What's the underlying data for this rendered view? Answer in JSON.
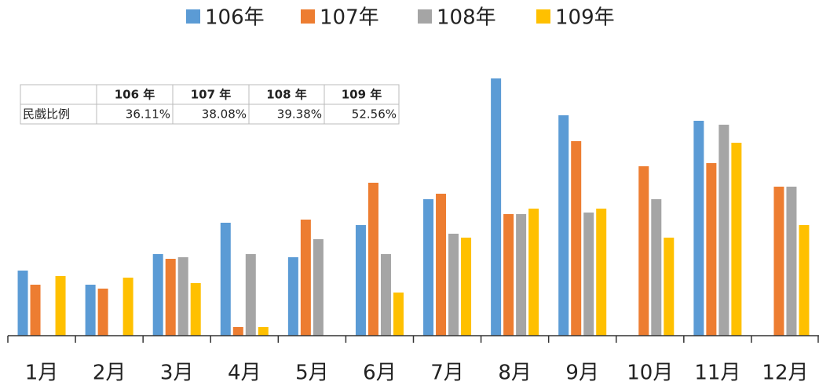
{
  "chart_data": {
    "type": "bar",
    "categories": [
      "1月",
      "2月",
      "3月",
      "4月",
      "5月",
      "6月",
      "7月",
      "8月",
      "9月",
      "10月",
      "11月",
      "12月"
    ],
    "series": [
      {
        "name": "106年",
        "color": "#5b9bd5",
        "values": [
          83,
          65,
          104,
          144,
          100,
          141,
          174,
          328,
          281,
          null,
          274,
          null
        ]
      },
      {
        "name": "107年",
        "color": "#ed7d31",
        "values": [
          65,
          60,
          98,
          11,
          148,
          195,
          181,
          155,
          248,
          216,
          220,
          190
        ]
      },
      {
        "name": "108年",
        "color": "#a5a5a5",
        "values": [
          null,
          null,
          100,
          104,
          123,
          104,
          130,
          155,
          157,
          174,
          269,
          190
        ]
      },
      {
        "name": "109年",
        "color": "#ffc000",
        "values": [
          76,
          74,
          67,
          11,
          null,
          55,
          125,
          162,
          162,
          125,
          246,
          141
        ]
      }
    ],
    "ylim": [
      0,
      330
    ],
    "legend": "top"
  },
  "table": {
    "header": [
      "",
      "106 年",
      "107 年",
      "108 年",
      "109 年"
    ],
    "rows": [
      [
        "民戲比例",
        "36.11%",
        "38.08%",
        "39.38%",
        "52.56%"
      ]
    ]
  }
}
